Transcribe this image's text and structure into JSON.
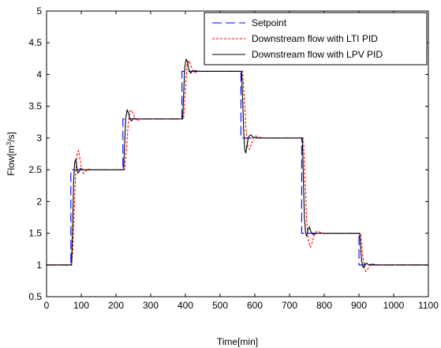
{
  "chart_data": {
    "type": "line",
    "xlabel": "Time[min]",
    "ylabel_parts": [
      "Flow[m",
      "3",
      "/s]"
    ],
    "xlim": [
      0,
      1100
    ],
    "ylim": [
      0.5,
      5
    ],
    "xticks": [
      0,
      100,
      200,
      300,
      400,
      500,
      600,
      700,
      800,
      900,
      1000,
      1100
    ],
    "yticks": [
      0.5,
      1,
      1.5,
      2,
      2.5,
      3,
      3.5,
      4,
      4.5,
      5
    ],
    "ytick_labels": [
      "0.5",
      "1",
      "1.5",
      "2",
      "2.5",
      "3",
      "3.5",
      "4",
      "4.5",
      "5"
    ],
    "grid": false,
    "legend_position": "top-right",
    "series": [
      {
        "name": "Setpoint",
        "color": "#0000ff",
        "style": "dashed",
        "x": [
          0,
          70,
          70,
          220,
          220,
          390,
          390,
          560,
          560,
          735,
          735,
          900,
          900,
          1100
        ],
        "y": [
          1.0,
          1.0,
          2.5,
          2.5,
          3.3,
          3.3,
          4.05,
          4.05,
          3.0,
          3.0,
          1.5,
          1.5,
          1.0,
          1.0
        ]
      },
      {
        "name": "Downstream flow with LTI PID",
        "color": "#ff0000",
        "style": "dotted",
        "x": [
          0,
          72,
          76,
          80,
          84,
          88,
          92,
          96,
          100,
          106,
          112,
          120,
          130,
          225,
          230,
          235,
          240,
          245,
          250,
          256,
          262,
          270,
          280,
          395,
          400,
          405,
          410,
          415,
          420,
          426,
          432,
          440,
          450,
          565,
          570,
          575,
          580,
          585,
          590,
          596,
          602,
          610,
          620,
          740,
          745,
          750,
          755,
          760,
          765,
          770,
          776,
          782,
          790,
          800,
          905,
          910,
          915,
          920,
          925,
          930,
          935,
          942,
          950,
          960,
          1100
        ],
        "y": [
          1.0,
          1.0,
          1.25,
          1.9,
          2.45,
          2.75,
          2.8,
          2.68,
          2.55,
          2.44,
          2.48,
          2.51,
          2.5,
          2.5,
          2.8,
          3.2,
          3.42,
          3.44,
          3.38,
          3.3,
          3.27,
          3.3,
          3.3,
          3.3,
          3.75,
          4.15,
          4.22,
          4.15,
          4.07,
          4.03,
          4.04,
          4.05,
          4.05,
          4.05,
          3.6,
          3.1,
          2.85,
          2.82,
          2.9,
          3.0,
          3.03,
          3.02,
          3.0,
          3.0,
          2.3,
          1.65,
          1.35,
          1.28,
          1.35,
          1.45,
          1.52,
          1.53,
          1.51,
          1.5,
          1.5,
          1.2,
          0.98,
          0.9,
          0.93,
          0.98,
          1.01,
          1.01,
          1.0,
          1.0,
          1.0
        ]
      },
      {
        "name": "Downstream flow with LPV PID",
        "color": "#000000",
        "style": "solid",
        "x": [
          0,
          72,
          75,
          78,
          81,
          84,
          87,
          90,
          94,
          98,
          104,
          110,
          120,
          222,
          225,
          228,
          232,
          236,
          240,
          245,
          250,
          258,
          270,
          392,
          395,
          398,
          402,
          406,
          410,
          415,
          420,
          428,
          440,
          562,
          565,
          568,
          571,
          574,
          578,
          582,
          588,
          596,
          610,
          737,
          740,
          743,
          746,
          749,
          753,
          757,
          762,
          768,
          775,
          785,
          902,
          905,
          908,
          911,
          914,
          918,
          922,
          928,
          936,
          950,
          1100
        ],
        "y": [
          1.0,
          1.0,
          1.6,
          2.3,
          2.62,
          2.66,
          2.55,
          2.45,
          2.47,
          2.52,
          2.5,
          2.5,
          2.5,
          2.5,
          2.9,
          3.3,
          3.44,
          3.4,
          3.3,
          3.27,
          3.31,
          3.3,
          3.3,
          3.3,
          3.7,
          4.1,
          4.24,
          4.2,
          4.08,
          4.02,
          4.05,
          4.06,
          4.05,
          4.05,
          3.6,
          3.1,
          2.82,
          2.76,
          2.9,
          3.02,
          3.05,
          3.01,
          3.0,
          3.0,
          2.3,
          1.75,
          1.52,
          1.45,
          1.55,
          1.6,
          1.52,
          1.48,
          1.5,
          1.5,
          1.5,
          1.25,
          1.05,
          0.97,
          0.96,
          1.02,
          1.03,
          1.0,
          1.01,
          1.0,
          1.0
        ]
      }
    ]
  }
}
